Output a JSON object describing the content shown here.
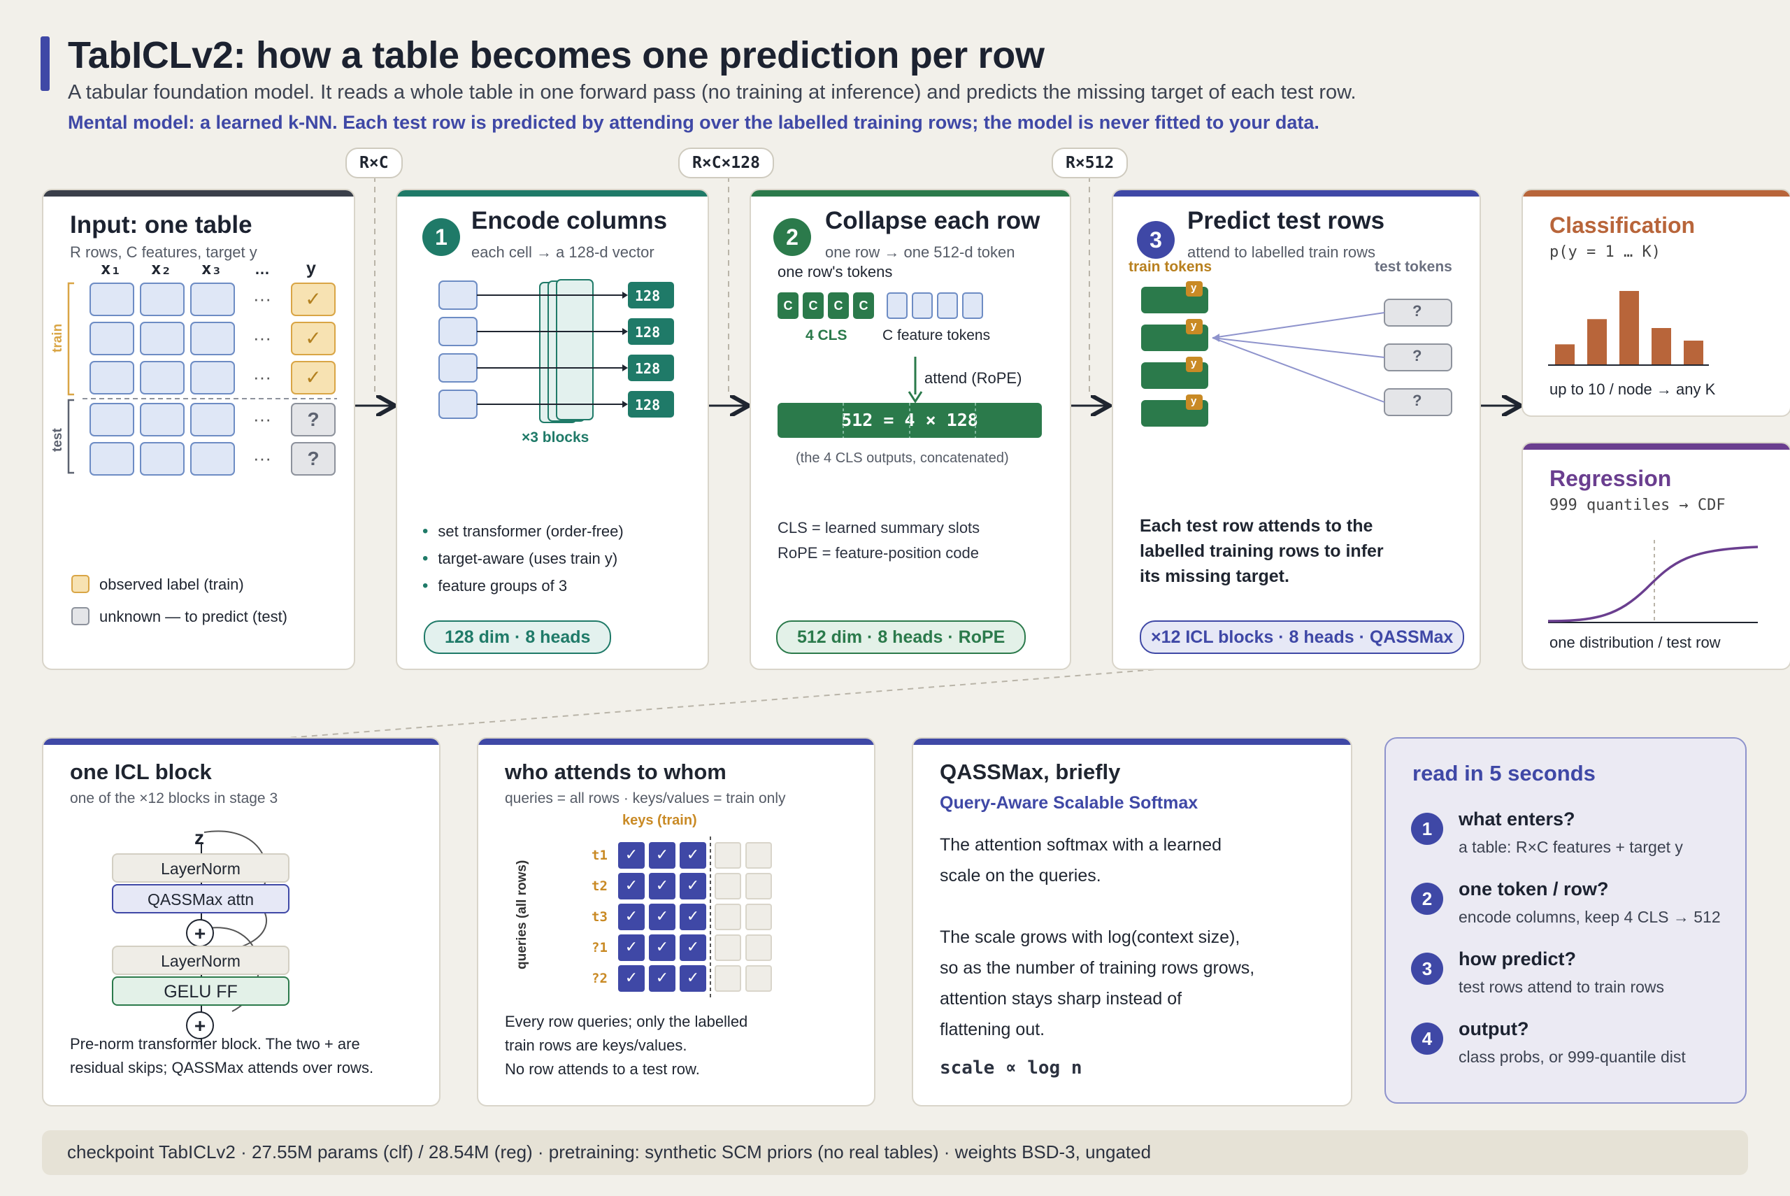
{
  "header": {
    "title": "TabICLv2: how a table becomes one prediction per row",
    "subtitle": "A tabular foundation model. It reads a whole table in one forward pass (no training at inference) and predicts the missing target of each test row.",
    "mental_model": "Mental model: a learned k-NN. Each test row is predicted by attending over the labelled training rows; the model is never fitted to your data."
  },
  "shape_tags": [
    "R×C",
    "R×C×128",
    "R×512"
  ],
  "input": {
    "title": "Input: one table",
    "subtitle": "R rows, C features, target y",
    "col_headers": [
      "x₁",
      "x₂",
      "x₃",
      "…",
      "y"
    ],
    "train_label": "train",
    "test_label": "test",
    "dots": "···",
    "check": "✓",
    "unknown": "?",
    "legend_observed": "observed label (train)",
    "legend_unknown": "unknown — to predict (test)"
  },
  "stage1": {
    "num": "1",
    "title": "Encode columns",
    "subtitle": "each cell → a 128-d vector",
    "vec_label": "128",
    "blocks_label": "×3 blocks",
    "bullets": [
      "set transformer (order-free)",
      "target-aware (uses train y)",
      "feature groups of 3"
    ],
    "pill": "128 dim · 8 heads"
  },
  "stage2": {
    "num": "2",
    "title": "Collapse each row",
    "subtitle": "one row → one 512-d token",
    "tokens_label": "one row's tokens",
    "cls_letter": "C",
    "cls_label": "4 CLS",
    "feat_label": "C feature tokens",
    "attend_label": "attend (RoPE)",
    "bar_text": "512 = 4 × 128",
    "bar_caption": "(the 4 CLS outputs, concatenated)",
    "note1": "CLS = learned summary slots",
    "note2": "RoPE = feature-position code",
    "pill": "512 dim · 8 heads · RoPE"
  },
  "stage3": {
    "num": "3",
    "title": "Predict test rows",
    "subtitle": "attend to labelled train rows",
    "train_tokens": "train tokens",
    "test_tokens": "test tokens",
    "y": "y",
    "q": "?",
    "desc": [
      "Each test row attends to the",
      "labelled training rows to infer",
      "its missing target."
    ],
    "pill": "×12 ICL blocks · 8 heads · QASSMax"
  },
  "classification": {
    "title": "Classification",
    "formula": "p(y = 1 … K)",
    "caption": "up to 10 / node → any K",
    "bars": [
      0.28,
      0.62,
      1.0,
      0.5,
      0.33
    ]
  },
  "regression": {
    "title": "Regression",
    "formula": "999 quantiles → CDF",
    "caption": "one distribution / test row"
  },
  "icl_block": {
    "title": "one ICL block",
    "subtitle": "one of the ×12 blocks in stage 3",
    "z": "z",
    "layernorm": "LayerNorm",
    "attn": "QASSMax attn",
    "ff": "GELU FF",
    "plus": "+",
    "desc": [
      "Pre-norm transformer block. The two + are",
      "residual skips; QASSMax attends over rows."
    ]
  },
  "attends": {
    "title": "who attends to whom",
    "subtitle": "queries = all rows · keys/values = train only",
    "keys_label": "keys (train)",
    "queries_label": "queries (all rows)",
    "row_labels": [
      "t1",
      "t2",
      "t3",
      "?1",
      "?2"
    ],
    "check": "✓",
    "desc": [
      "Every row queries; only the labelled",
      "train rows are keys/values.",
      "No row attends to a test row."
    ]
  },
  "qassmax": {
    "title": "QASSMax, briefly",
    "subtitle": "Query-Aware Scalable Softmax",
    "p1": [
      "The attention softmax with a learned",
      "scale on the queries."
    ],
    "p2": [
      "The scale grows with log(context size),",
      "so as the number of training rows grows,",
      "attention stays sharp instead of",
      "flattening out."
    ],
    "formula": "scale ∝ log n"
  },
  "read5": {
    "title": "read in 5 seconds",
    "items": [
      {
        "n": "1",
        "q": "what enters?",
        "a": "a table: R×C features + target y"
      },
      {
        "n": "2",
        "q": "one token / row?",
        "a": "encode columns, keep 4 CLS → 512"
      },
      {
        "n": "3",
        "q": "how predict?",
        "a": "test rows attend to train rows"
      },
      {
        "n": "4",
        "q": "output?",
        "a": "class probs, or 999-quantile dist"
      }
    ]
  },
  "footer": "checkpoint TabICLv2 · 27.55M params (clf) / 28.54M (reg) · pretraining: synthetic SCM priors (no real tables) · weights BSD-3, ungated",
  "colors": {
    "accent_blue": "#3f48a6",
    "teal": "#1f7a68",
    "green": "#2b7a4b",
    "orange": "#b8653a",
    "purple": "#6a3e8f"
  }
}
